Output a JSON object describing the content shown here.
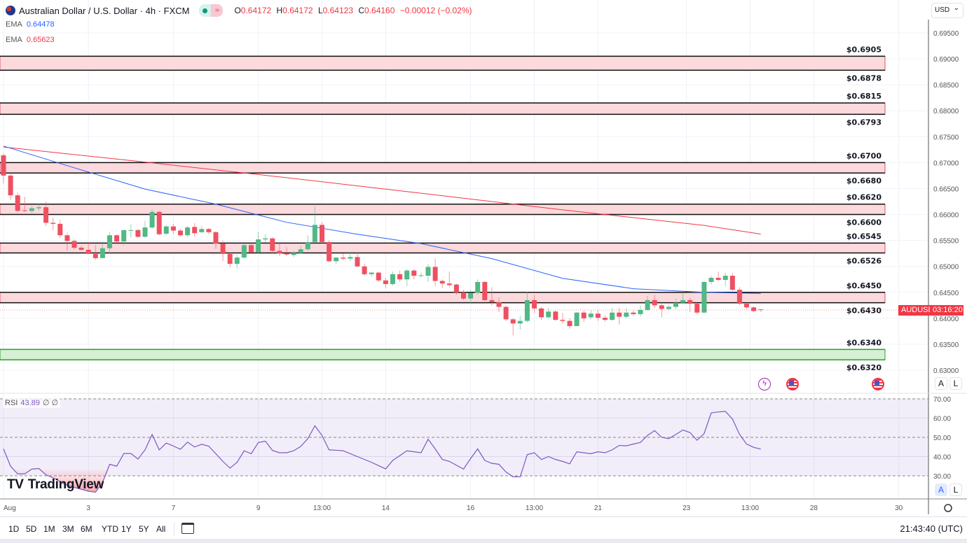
{
  "header": {
    "title": "Australian Dollar / U.S. Dollar · 4h · FXCM",
    "ohlc": {
      "o_label": "O",
      "o": "0.64172",
      "h_label": "H",
      "h": "0.64172",
      "l_label": "L",
      "l": "0.64123",
      "c_label": "C",
      "c": "0.64160",
      "change": "−0.00012 (−0.02%)"
    },
    "icons": [
      "flag-icon",
      "market-status-dot-icon",
      "wave-icon"
    ]
  },
  "indicators": {
    "ema1": {
      "label": "EMA",
      "value": "0.64478",
      "color": "#2962ff"
    },
    "ema2": {
      "label": "EMA",
      "value": "0.65623",
      "color": "#f23645"
    },
    "rsi": {
      "label": "RSI",
      "value": "43.89",
      "extra1": "∅",
      "extra2": "∅",
      "color": "#7e57c2"
    }
  },
  "currency": "USD",
  "price_label": {
    "symbol": "AUDUSD",
    "countdown": "03:16:20"
  },
  "scale_buttons": {
    "auto": "A",
    "log": "L"
  },
  "bottom": {
    "ranges": [
      "1D",
      "5D",
      "1M",
      "3M",
      "6M",
      "YTD",
      "1Y",
      "5Y",
      "All"
    ],
    "clock": "21:43:40 (UTC)"
  },
  "logo": "TradingView",
  "colors": {
    "up": "#51b886",
    "down": "#ef5060",
    "zone_red": "#fcd9dc",
    "zone_green": "#d5f0d3"
  },
  "chart_data": [
    {
      "type": "candlestick",
      "symbol": "AUDUSD",
      "interval": "4h",
      "ylim": [
        0.6295,
        0.697
      ],
      "y_ticks": [
        "0.69500",
        "0.69000",
        "0.68500",
        "0.68000",
        "0.67500",
        "0.67000",
        "0.66500",
        "0.66000",
        "0.65500",
        "0.65000",
        "0.64500",
        "0.64000",
        "0.63500",
        "0.63000"
      ],
      "x_ticks": [
        {
          "bar": 0,
          "label": "Aug"
        },
        {
          "bar": 12,
          "label": "3"
        },
        {
          "bar": 24,
          "label": "7"
        },
        {
          "bar": 36,
          "label": "9"
        },
        {
          "bar": 45,
          "label": "13:00"
        },
        {
          "bar": 54,
          "label": "14"
        },
        {
          "bar": 66,
          "label": "16"
        },
        {
          "bar": 75,
          "label": "13:00"
        },
        {
          "bar": 84,
          "label": "21"
        },
        {
          "bar": 96.5,
          "label": "23"
        },
        {
          "bar": 105.5,
          "label": "13:00"
        },
        {
          "bar": 114.5,
          "label": "28"
        },
        {
          "bar": 126.5,
          "label": "30"
        }
      ],
      "candles_ohlc": [
        [
          0.6714,
          0.6718,
          0.666,
          0.6675
        ],
        [
          0.6675,
          0.668,
          0.6628,
          0.6637
        ],
        [
          0.6637,
          0.6642,
          0.6605,
          0.6607
        ],
        [
          0.6608,
          0.6634,
          0.6605,
          0.6607
        ],
        [
          0.6607,
          0.6616,
          0.6603,
          0.6612
        ],
        [
          0.6612,
          0.6622,
          0.6608,
          0.6614
        ],
        [
          0.6614,
          0.6625,
          0.6578,
          0.6584
        ],
        [
          0.6584,
          0.6594,
          0.657,
          0.6582
        ],
        [
          0.6582,
          0.659,
          0.6555,
          0.656
        ],
        [
          0.656,
          0.6565,
          0.653,
          0.6549
        ],
        [
          0.6549,
          0.6552,
          0.6533,
          0.6536
        ],
        [
          0.6536,
          0.654,
          0.653,
          0.6532
        ],
        [
          0.6532,
          0.6547,
          0.6524,
          0.6524
        ],
        [
          0.6524,
          0.6541,
          0.6513,
          0.6516
        ],
        [
          0.6516,
          0.6548,
          0.6516,
          0.6535
        ],
        [
          0.6535,
          0.6566,
          0.6525,
          0.656
        ],
        [
          0.656,
          0.6562,
          0.6545,
          0.6548
        ],
        [
          0.6548,
          0.657,
          0.654,
          0.657
        ],
        [
          0.657,
          0.6582,
          0.6556,
          0.657
        ],
        [
          0.657,
          0.6572,
          0.6555,
          0.6557
        ],
        [
          0.6557,
          0.6588,
          0.6556,
          0.6575
        ],
        [
          0.6575,
          0.661,
          0.6572,
          0.6605
        ],
        [
          0.6605,
          0.6607,
          0.656,
          0.6562
        ],
        [
          0.6563,
          0.658,
          0.656,
          0.6577
        ],
        [
          0.6577,
          0.6582,
          0.6562,
          0.6569
        ],
        [
          0.6569,
          0.6572,
          0.6558,
          0.656
        ],
        [
          0.656,
          0.6578,
          0.6556,
          0.6575
        ],
        [
          0.6576,
          0.6583,
          0.6558,
          0.6564
        ],
        [
          0.6566,
          0.6578,
          0.6564,
          0.6572
        ],
        [
          0.6572,
          0.6574,
          0.6562,
          0.6566
        ],
        [
          0.6566,
          0.6568,
          0.6534,
          0.6544
        ],
        [
          0.6544,
          0.655,
          0.651,
          0.6524
        ],
        [
          0.6524,
          0.6527,
          0.6498,
          0.6505
        ],
        [
          0.6505,
          0.6522,
          0.6496,
          0.6517
        ],
        [
          0.6517,
          0.6543,
          0.6515,
          0.6541
        ],
        [
          0.6541,
          0.6543,
          0.6525,
          0.6527
        ],
        [
          0.6527,
          0.6567,
          0.6525,
          0.6552
        ],
        [
          0.6552,
          0.6562,
          0.6547,
          0.6554
        ],
        [
          0.6554,
          0.6556,
          0.6525,
          0.653
        ],
        [
          0.653,
          0.6545,
          0.652,
          0.6525
        ],
        [
          0.6525,
          0.6537,
          0.652,
          0.6523
        ],
        [
          0.6522,
          0.653,
          0.6518,
          0.6526
        ],
        [
          0.6526,
          0.654,
          0.6525,
          0.6533
        ],
        [
          0.6533,
          0.656,
          0.653,
          0.6547
        ],
        [
          0.6547,
          0.6615,
          0.6545,
          0.658
        ],
        [
          0.658,
          0.6585,
          0.6545,
          0.6547
        ],
        [
          0.6547,
          0.655,
          0.6508,
          0.651
        ],
        [
          0.651,
          0.6518,
          0.6505,
          0.6517
        ],
        [
          0.6517,
          0.6525,
          0.6512,
          0.6515
        ],
        [
          0.6515,
          0.6528,
          0.651,
          0.6518
        ],
        [
          0.6518,
          0.6527,
          0.6498,
          0.65
        ],
        [
          0.65,
          0.6505,
          0.6482,
          0.6485
        ],
        [
          0.6485,
          0.649,
          0.648,
          0.6488
        ],
        [
          0.6488,
          0.649,
          0.647,
          0.6473
        ],
        [
          0.6473,
          0.6478,
          0.6458,
          0.6466
        ],
        [
          0.6466,
          0.649,
          0.6463,
          0.6485
        ],
        [
          0.6485,
          0.6492,
          0.647,
          0.6475
        ],
        [
          0.6475,
          0.6495,
          0.6462,
          0.6492
        ],
        [
          0.6492,
          0.6495,
          0.6475,
          0.6482
        ],
        [
          0.6483,
          0.6488,
          0.6478,
          0.6483
        ],
        [
          0.6482,
          0.6505,
          0.647,
          0.6499
        ],
        [
          0.6499,
          0.6515,
          0.6462,
          0.6472
        ],
        [
          0.6472,
          0.6475,
          0.6458,
          0.6467
        ],
        [
          0.6467,
          0.649,
          0.646,
          0.6464
        ],
        [
          0.6465,
          0.6467,
          0.6446,
          0.645
        ],
        [
          0.645,
          0.6455,
          0.6435,
          0.6438
        ],
        [
          0.6438,
          0.6455,
          0.6428,
          0.6449
        ],
        [
          0.6449,
          0.6475,
          0.6445,
          0.647
        ],
        [
          0.647,
          0.6472,
          0.6433,
          0.6435
        ],
        [
          0.6435,
          0.646,
          0.6425,
          0.6431
        ],
        [
          0.6431,
          0.644,
          0.6412,
          0.6422
        ],
        [
          0.6422,
          0.6425,
          0.6395,
          0.6398
        ],
        [
          0.6398,
          0.64,
          0.6367,
          0.639
        ],
        [
          0.639,
          0.6405,
          0.6378,
          0.6395
        ],
        [
          0.6395,
          0.6451,
          0.6392,
          0.6435
        ],
        [
          0.6435,
          0.6445,
          0.641,
          0.6419
        ],
        [
          0.6419,
          0.6422,
          0.6397,
          0.6402
        ],
        [
          0.6402,
          0.642,
          0.64,
          0.6413
        ],
        [
          0.6413,
          0.6415,
          0.6395,
          0.6397
        ],
        [
          0.6397,
          0.641,
          0.639,
          0.6395
        ],
        [
          0.6395,
          0.64,
          0.638,
          0.6385
        ],
        [
          0.6385,
          0.6412,
          0.6385,
          0.6411
        ],
        [
          0.6411,
          0.6415,
          0.6393,
          0.64
        ],
        [
          0.6402,
          0.6415,
          0.6398,
          0.6409
        ],
        [
          0.6409,
          0.6415,
          0.6395,
          0.6401
        ],
        [
          0.6401,
          0.6405,
          0.6393,
          0.6397
        ],
        [
          0.6397,
          0.642,
          0.6395,
          0.6411
        ],
        [
          0.6411,
          0.642,
          0.6388,
          0.6403
        ],
        [
          0.6403,
          0.642,
          0.64,
          0.6411
        ],
        [
          0.6411,
          0.6415,
          0.6405,
          0.6408
        ],
        [
          0.6408,
          0.6425,
          0.6403,
          0.6416
        ],
        [
          0.6416,
          0.6443,
          0.6415,
          0.6435
        ],
        [
          0.6435,
          0.6445,
          0.642,
          0.6425
        ],
        [
          0.6425,
          0.6428,
          0.6402,
          0.6418
        ],
        [
          0.6418,
          0.6425,
          0.6415,
          0.6422
        ],
        [
          0.6422,
          0.6438,
          0.6418,
          0.643
        ],
        [
          0.643,
          0.645,
          0.6428,
          0.6435
        ],
        [
          0.6435,
          0.644,
          0.6412,
          0.6428
        ],
        [
          0.6428,
          0.643,
          0.6408,
          0.6411
        ],
        [
          0.6411,
          0.6472,
          0.641,
          0.647
        ],
        [
          0.647,
          0.6482,
          0.6465,
          0.6478
        ],
        [
          0.6478,
          0.649,
          0.6472,
          0.6474
        ],
        [
          0.6474,
          0.6488,
          0.6462,
          0.6482
        ],
        [
          0.6482,
          0.6487,
          0.6453,
          0.6455
        ],
        [
          0.6455,
          0.646,
          0.6425,
          0.6428
        ],
        [
          0.6428,
          0.643,
          0.6418,
          0.6421
        ],
        [
          0.6421,
          0.6423,
          0.6412,
          0.6414
        ],
        [
          0.64172,
          0.64172,
          0.64123,
          0.6416
        ]
      ],
      "ema_fast_points": [
        [
          0,
          0.6732
        ],
        [
          10,
          0.669
        ],
        [
          20,
          0.6649
        ],
        [
          30,
          0.662
        ],
        [
          40,
          0.6585
        ],
        [
          50,
          0.6562
        ],
        [
          59,
          0.6544
        ],
        [
          69,
          0.6515
        ],
        [
          79,
          0.6477
        ],
        [
          89,
          0.6457
        ],
        [
          99,
          0.645
        ],
        [
          107,
          0.64478
        ]
      ],
      "ema_slow_points": [
        [
          0,
          0.673
        ],
        [
          20,
          0.6701
        ],
        [
          40,
          0.6671
        ],
        [
          59,
          0.6641
        ],
        [
          79,
          0.6609
        ],
        [
          99,
          0.6579
        ],
        [
          107,
          0.65623
        ]
      ],
      "zones": [
        {
          "top": 0.6905,
          "bottom": 0.6878,
          "top_label": "$0.6905",
          "bottom_label": "$0.6878",
          "kind": "resistance"
        },
        {
          "top": 0.6815,
          "bottom": 0.6793,
          "top_label": "$0.6815",
          "bottom_label": "$0.6793",
          "kind": "resistance"
        },
        {
          "top": 0.67,
          "bottom": 0.668,
          "top_label": "$0.6700",
          "bottom_label": "$0.6680",
          "kind": "resistance"
        },
        {
          "top": 0.662,
          "bottom": 0.66,
          "top_label": "$0.6620",
          "bottom_label": "$0.6600",
          "kind": "resistance"
        },
        {
          "top": 0.6545,
          "bottom": 0.6526,
          "top_label": "$0.6545",
          "bottom_label": "$0.6526",
          "kind": "resistance"
        },
        {
          "top": 0.645,
          "bottom": 0.643,
          "top_label": "$0.6450",
          "bottom_label": "$0.6430",
          "kind": "resistance"
        },
        {
          "top": 0.634,
          "bottom": 0.632,
          "top_label": "$0.6340",
          "bottom_label": "$0.6320",
          "kind": "support"
        }
      ],
      "last_price": 0.6416,
      "grid": true
    },
    {
      "type": "line",
      "name": "RSI",
      "ylim": [
        24,
        74
      ],
      "y_ticks": [
        "70.00",
        "60.00",
        "50.00",
        "40.00",
        "30.00"
      ],
      "bands": [
        70,
        50,
        30
      ],
      "values": [
        44,
        35,
        31,
        31,
        33.5,
        33.8,
        30.5,
        29,
        27,
        25,
        24,
        23,
        22,
        21.5,
        26.5,
        36,
        35,
        41.6,
        41.6,
        38.7,
        43.5,
        51.5,
        43.5,
        47,
        45.5,
        43.8,
        47.5,
        45,
        46.4,
        45.4,
        41.5,
        37.5,
        34,
        37,
        43,
        41.5,
        47.3,
        48,
        43.2,
        42,
        42,
        43,
        45.3,
        49.3,
        56,
        51,
        43.5,
        43.3,
        43,
        41.5,
        40,
        38.5,
        37,
        35.3,
        33.6,
        38,
        40.5,
        43,
        42.5,
        42,
        49,
        44,
        38.5,
        37.5,
        35.5,
        33.5,
        39,
        44,
        38,
        36.5,
        36,
        32,
        29.5,
        29.5,
        41,
        42,
        38.5,
        40,
        38.5,
        37.5,
        36.2,
        42.5,
        42,
        41.5,
        42.5,
        42,
        43.5,
        45.8,
        45.6,
        46.5,
        47.4,
        51,
        53.5,
        50,
        49.3,
        51.5,
        53.8,
        52.5,
        48.5,
        52,
        62.7,
        63.2,
        63.5,
        59.5,
        51.5,
        46.5,
        44.8,
        43.89
      ]
    }
  ]
}
